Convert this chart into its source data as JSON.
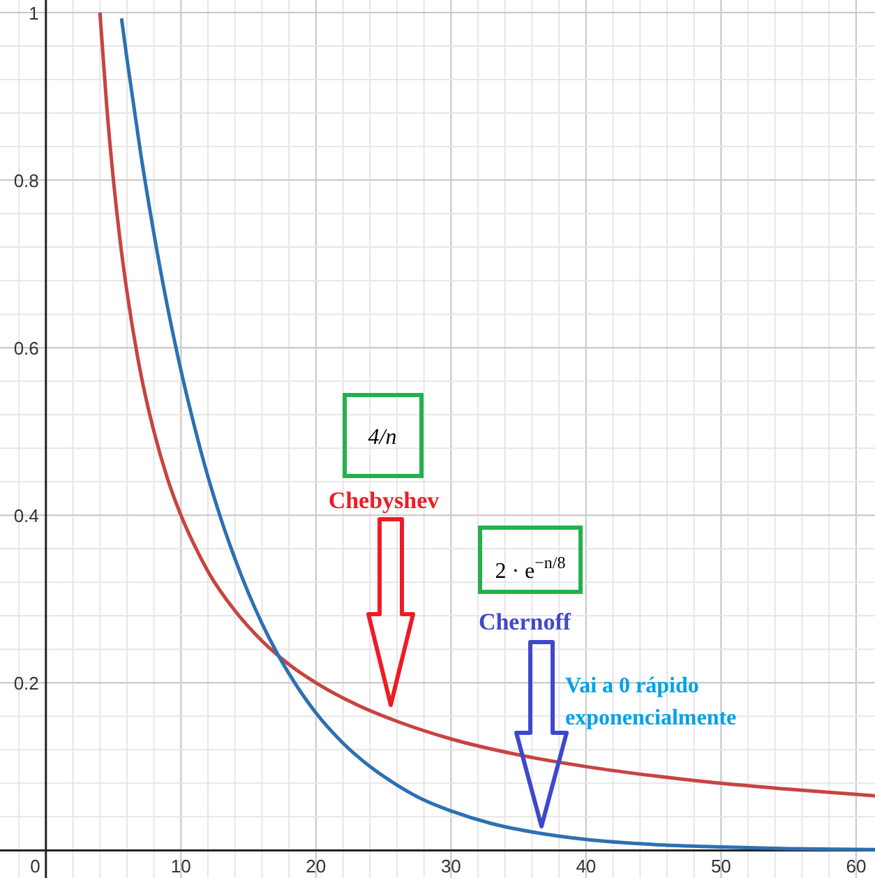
{
  "chart_data": {
    "type": "line",
    "xlim": [
      -3.4,
      61.4
    ],
    "ylim": [
      -0.033,
      1.015
    ],
    "xticks": [
      0,
      10,
      20,
      30,
      40,
      50,
      60
    ],
    "yticks": [
      {
        "value": 0,
        "label": null
      },
      0.2,
      0.4,
      0.6,
      0.8,
      1
    ],
    "grid": true,
    "marker": "none",
    "line_style": "solid",
    "series": [
      {
        "color": "#c74440",
        "x": [
          4,
          4.5,
          5,
          5.5,
          6,
          7,
          8,
          9,
          10,
          11,
          12,
          14,
          16,
          18,
          20,
          23,
          26,
          30,
          35,
          40,
          45,
          50,
          55,
          61.4
        ],
        "values": [
          1,
          0.889,
          0.8,
          0.727,
          0.667,
          0.571,
          0.5,
          0.444,
          0.4,
          0.364,
          0.333,
          0.286,
          0.25,
          0.222,
          0.2,
          0.174,
          0.154,
          0.133,
          0.114,
          0.1,
          0.089,
          0.08,
          0.073,
          0.065
        ]
      },
      {
        "color": "#2d70b3",
        "x": [
          5.6,
          6,
          7,
          8,
          9,
          10,
          11,
          12,
          13,
          14,
          15,
          16,
          17,
          18,
          20,
          22,
          24,
          26,
          28,
          30,
          33,
          36,
          40,
          45,
          50,
          55,
          61.4
        ],
        "values": [
          0.993,
          0.945,
          0.834,
          0.736,
          0.649,
          0.573,
          0.506,
          0.446,
          0.394,
          0.348,
          0.307,
          0.271,
          0.239,
          0.211,
          0.164,
          0.128,
          0.1,
          0.078,
          0.06,
          0.047,
          0.032,
          0.022,
          0.013,
          0.007,
          0.004,
          0.002,
          0.001
        ]
      }
    ],
    "annotations": [
      "4/n",
      "Chebyshev",
      "2 · e$^{−n/8}$",
      "Chernoff",
      "Vai a 0 rápido",
      "exponencialmente"
    ]
  }
}
